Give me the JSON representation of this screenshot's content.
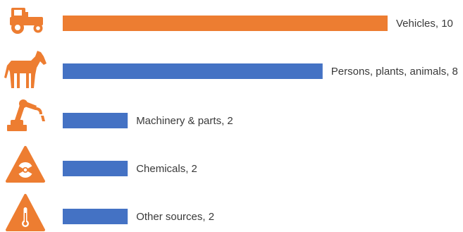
{
  "chart_data": {
    "type": "bar",
    "orientation": "horizontal",
    "title": "",
    "xlabel": "",
    "ylabel": "",
    "xlim": [
      0,
      10
    ],
    "grid": false,
    "legend": "none",
    "categories": [
      "Vehicles",
      "Persons, plants, animals",
      "Machinery & parts",
      "Chemicals",
      "Other sources"
    ],
    "values": [
      10,
      8,
      2,
      2,
      2
    ],
    "labels": [
      "Vehicles, 10",
      "Persons, plants, animals, 8",
      "Machinery & parts, 2",
      "Chemicals, 2",
      "Other sources, 2"
    ],
    "icons": [
      "tractor-icon",
      "horse-icon",
      "robot-arm-icon",
      "radiation-warning-icon",
      "thermometer-warning-icon"
    ],
    "colors": [
      "#ED7D31",
      "#4472C4",
      "#4472C4",
      "#4472C4",
      "#4472C4"
    ]
  }
}
